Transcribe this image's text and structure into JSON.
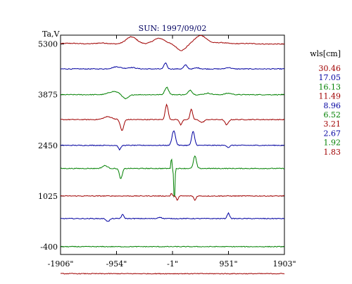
{
  "chart_data": {
    "type": "line",
    "title": "SUN: 1997/09/02",
    "ylabel": "Ta,V",
    "xlabel": "",
    "legend_title": "wls[cm]",
    "legend_position": "right",
    "grid": false,
    "x_ticks": [
      "-1906\"",
      "-954\"",
      "-1\"",
      "951\"",
      "1903\""
    ],
    "x_tick_values": [
      -1906,
      -954,
      -1,
      951,
      1903
    ],
    "xlim": [
      -1906,
      1903
    ],
    "y_ticks": [
      "5300",
      "3875",
      "2450",
      "1025",
      "-400"
    ],
    "y_tick_values": [
      5300,
      3875,
      2450,
      1025,
      -400
    ],
    "ylim": [
      -620,
      5550
    ],
    "series": [
      {
        "name": "30.46",
        "color": "#a00000",
        "baseline": 5300,
        "features": [
          [
            -1750,
            20,
            250
          ],
          [
            -1200,
            30,
            150
          ],
          [
            -700,
            200,
            130
          ],
          [
            -230,
            160,
            140
          ],
          [
            150,
            -180,
            110
          ],
          [
            480,
            240,
            140
          ],
          [
            820,
            40,
            150
          ],
          [
            1250,
            15,
            200
          ]
        ]
      },
      {
        "name": "17.05",
        "color": "#0000a0",
        "baseline": 4600,
        "features": [
          [
            -950,
            60,
            100
          ],
          [
            -700,
            40,
            100
          ],
          [
            -120,
            170,
            35
          ],
          [
            220,
            110,
            40
          ],
          [
            420,
            30,
            60
          ],
          [
            950,
            40,
            60
          ]
        ]
      },
      {
        "name": "16.13",
        "color": "#008000",
        "baseline": 3875,
        "features": [
          [
            -1000,
            90,
            120
          ],
          [
            -800,
            -120,
            70
          ],
          [
            -100,
            210,
            45
          ],
          [
            300,
            130,
            45
          ],
          [
            600,
            40,
            80
          ],
          [
            950,
            40,
            80
          ]
        ]
      },
      {
        "name": "11.49",
        "color": "#a00000",
        "baseline": 3175,
        "features": [
          [
            -1100,
            80,
            100
          ],
          [
            -860,
            -310,
            40
          ],
          [
            -100,
            420,
            35
          ],
          [
            140,
            -150,
            30
          ],
          [
            320,
            290,
            30
          ],
          [
            500,
            -80,
            50
          ],
          [
            920,
            -150,
            40
          ]
        ]
      },
      {
        "name": "8.96",
        "color": "#0000a0",
        "baseline": 2450,
        "features": [
          [
            -900,
            -120,
            30
          ],
          [
            20,
            420,
            40
          ],
          [
            350,
            390,
            35
          ],
          [
            950,
            -60,
            30
          ]
        ]
      },
      {
        "name": "6.52",
        "color": "#008000",
        "baseline": 1800,
        "features": [
          [
            -1150,
            80,
            60
          ],
          [
            -880,
            -290,
            35
          ],
          [
            -20,
            360,
            10
          ],
          [
            30,
            -950,
            14
          ],
          [
            380,
            350,
            35
          ]
        ]
      },
      {
        "name": "3.21",
        "color": "#a00000",
        "baseline": 1025,
        "features": [
          [
            -20,
            80,
            15
          ],
          [
            80,
            -110,
            25
          ],
          [
            380,
            -120,
            25
          ]
        ]
      },
      {
        "name": "2.67",
        "color": "#0000a0",
        "baseline": 390,
        "features": [
          [
            -1100,
            -80,
            40
          ],
          [
            -850,
            110,
            30
          ],
          [
            -220,
            40,
            40
          ],
          [
            950,
            150,
            30
          ]
        ]
      },
      {
        "name": "1.92",
        "color": "#008000",
        "baseline": -400,
        "features": []
      },
      {
        "name": "1.83",
        "color": "#a00000",
        "baseline": -1160,
        "features": []
      }
    ]
  }
}
